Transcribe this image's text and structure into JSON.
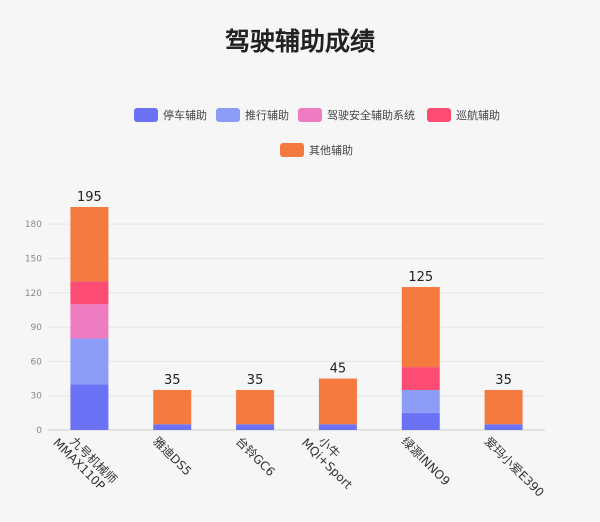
{
  "chart_data": {
    "type": "bar",
    "stacked": true,
    "title": "驾驶辅助成绩",
    "categories": [
      "九号机械师\nMMAX110P",
      "雅迪DS5",
      "台铃GC6",
      "小牛\nMQi+Sport",
      "绿源INNO9",
      "爱玛小爱E390"
    ],
    "series": [
      {
        "name": "停车辅助",
        "color": "#6b72f5",
        "values": [
          40,
          5,
          5,
          5,
          15,
          5
        ]
      },
      {
        "name": "推行辅助",
        "color": "#8c9cf7",
        "values": [
          40,
          0,
          0,
          0,
          20,
          0
        ]
      },
      {
        "name": "驾驶安全辅助系统",
        "color": "#ee7cc0",
        "values": [
          30,
          0,
          0,
          0,
          0,
          0
        ]
      },
      {
        "name": "巡航辅助",
        "color": "#fc4c74",
        "values": [
          20,
          0,
          0,
          0,
          20,
          0
        ]
      },
      {
        "name": "其他辅助",
        "color": "#f47a40",
        "values": [
          65,
          30,
          30,
          40,
          70,
          30
        ]
      }
    ],
    "totals": [
      "195",
      "35",
      "35",
      "45",
      "125",
      "35"
    ],
    "yticks": [
      "0",
      "30",
      "60",
      "90",
      "120",
      "150",
      "180"
    ],
    "ylim": [
      0,
      195
    ],
    "grid": true,
    "legend_position": "top"
  }
}
